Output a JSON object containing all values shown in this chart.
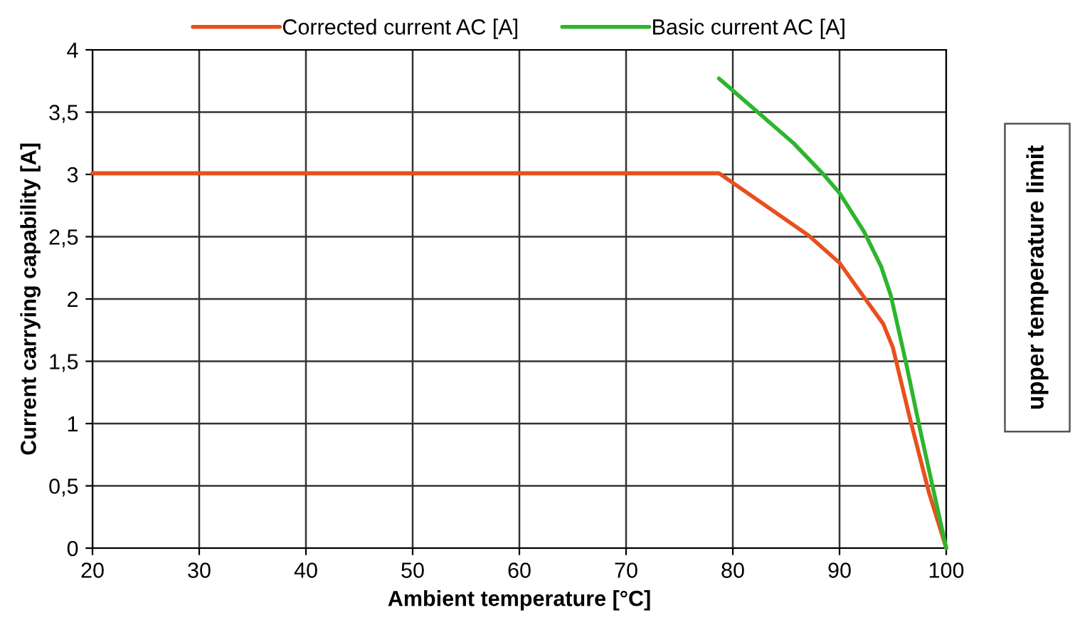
{
  "chart_data": {
    "type": "line",
    "xlabel": "Ambient temperature [°C]",
    "ylabel": "Current carrying capability [A]",
    "xlim": [
      20,
      100
    ],
    "xticks": [
      20,
      30,
      40,
      50,
      60,
      70,
      80,
      90,
      100
    ],
    "ylim": [
      0,
      4
    ],
    "yticks": [
      0,
      {
        "value": 0.5,
        "label": "0,5"
      },
      1,
      {
        "value": 1.5,
        "label": "1,5"
      },
      2,
      {
        "value": 2.5,
        "label": "2,5"
      },
      3,
      {
        "value": 3.5,
        "label": "3,5"
      },
      4
    ],
    "grid": true,
    "legend": "top",
    "marker": "none",
    "line_style": "solid",
    "annotations": [
      "upper temperature limit"
    ],
    "series": [
      {
        "name": "Corrected current AC [A]",
        "color": "#e8501e",
        "x": [
          20,
          78.7,
          87.1,
          90,
          92.5,
          94.1,
          95.0,
          96.6,
          98.4,
          100
        ],
        "values": [
          3.01,
          3.01,
          2.51,
          2.29,
          1.99,
          1.8,
          1.61,
          1.04,
          0.44,
          0
        ]
      },
      {
        "name": "Basic current AC [A]",
        "color": "#2db52d",
        "x": [
          78.7,
          85.7,
          88.5,
          90,
          92.3,
          93.9,
          94.8,
          96.2,
          97.5,
          100
        ],
        "values": [
          3.77,
          3.25,
          3.0,
          2.85,
          2.54,
          2.26,
          2.03,
          1.5,
          0.97,
          0
        ]
      }
    ]
  }
}
